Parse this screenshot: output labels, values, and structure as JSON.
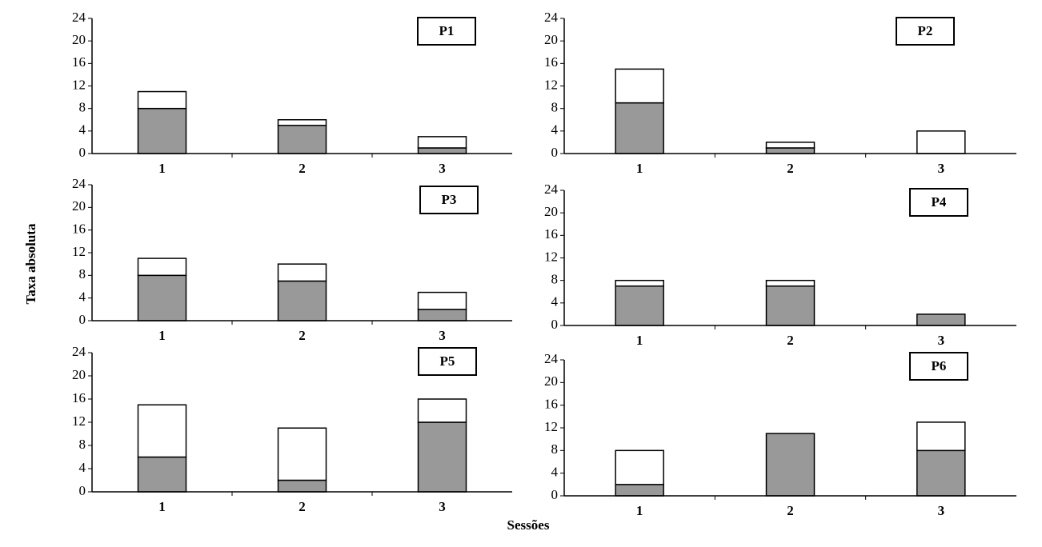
{
  "ylabel": "Taxa absoluta",
  "xlabel": "Sessões",
  "chart_data": [
    {
      "type": "bar",
      "stacked": true,
      "title": "P1",
      "categories": [
        "1",
        "2",
        "3"
      ],
      "series": [
        {
          "color": "#999999",
          "values": [
            8,
            5,
            1
          ]
        },
        {
          "color": "#ffffff",
          "values": [
            3,
            1,
            2
          ]
        }
      ],
      "ylim": [
        0,
        24
      ],
      "yticks": [
        0,
        4,
        8,
        12,
        16,
        20,
        24
      ]
    },
    {
      "type": "bar",
      "stacked": true,
      "title": "P2",
      "categories": [
        "1",
        "2",
        "3"
      ],
      "series": [
        {
          "color": "#999999",
          "values": [
            9,
            1,
            0
          ]
        },
        {
          "color": "#ffffff",
          "values": [
            6,
            1,
            4
          ]
        }
      ],
      "ylim": [
        0,
        24
      ],
      "yticks": [
        0,
        4,
        8,
        12,
        16,
        20,
        24
      ]
    },
    {
      "type": "bar",
      "stacked": true,
      "title": "P3",
      "categories": [
        "1",
        "2",
        "3"
      ],
      "series": [
        {
          "color": "#999999",
          "values": [
            8,
            7,
            2
          ]
        },
        {
          "color": "#ffffff",
          "values": [
            3,
            3,
            3
          ]
        }
      ],
      "ylim": [
        0,
        24
      ],
      "yticks": [
        0,
        4,
        8,
        12,
        16,
        20,
        24
      ]
    },
    {
      "type": "bar",
      "stacked": true,
      "title": "P4",
      "categories": [
        "1",
        "2",
        "3"
      ],
      "series": [
        {
          "color": "#999999",
          "values": [
            7,
            7,
            2
          ]
        },
        {
          "color": "#ffffff",
          "values": [
            1,
            1,
            0
          ]
        }
      ],
      "ylim": [
        0,
        24
      ],
      "yticks": [
        0,
        4,
        8,
        12,
        16,
        20,
        24
      ]
    },
    {
      "type": "bar",
      "stacked": true,
      "title": "P5",
      "categories": [
        "1",
        "2",
        "3"
      ],
      "series": [
        {
          "color": "#999999",
          "values": [
            6,
            2,
            12
          ]
        },
        {
          "color": "#ffffff",
          "values": [
            9,
            9,
            4
          ]
        }
      ],
      "ylim": [
        0,
        24
      ],
      "yticks": [
        0,
        4,
        8,
        12,
        16,
        20,
        24
      ]
    },
    {
      "type": "bar",
      "stacked": true,
      "title": "P6",
      "categories": [
        "1",
        "2",
        "3"
      ],
      "series": [
        {
          "color": "#999999",
          "values": [
            2,
            11,
            8
          ]
        },
        {
          "color": "#ffffff",
          "values": [
            6,
            0,
            5
          ]
        }
      ],
      "ylim": [
        0,
        24
      ],
      "yticks": [
        0,
        4,
        8,
        12,
        16,
        20,
        24
      ]
    }
  ]
}
